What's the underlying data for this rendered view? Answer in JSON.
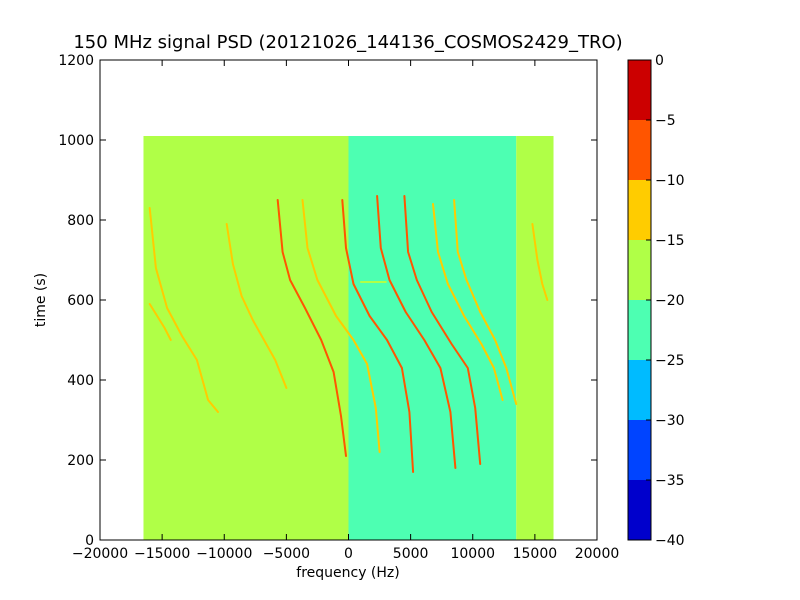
{
  "chart_data": {
    "type": "heatmap",
    "title": "150 MHz signal PSD (20121026_144136_COSMOS2429_TRO)",
    "xlabel": "frequency (Hz)",
    "ylabel": "time (s)",
    "xlim": [
      -20000,
      20000
    ],
    "ylim": [
      0,
      1200
    ],
    "x_ticks": [
      "−20000",
      "−15000",
      "−10000",
      "−5000",
      "0",
      "5000",
      "10000",
      "15000",
      "20000"
    ],
    "x_tick_values": [
      -20000,
      -15000,
      -10000,
      -5000,
      0,
      5000,
      10000,
      15000,
      20000
    ],
    "y_ticks": [
      "0",
      "200",
      "400",
      "600",
      "800",
      "1000",
      "1200"
    ],
    "y_tick_values": [
      0,
      200,
      400,
      600,
      800,
      1000,
      1200
    ],
    "data_extent": {
      "x": [
        -16500,
        16500
      ],
      "y": [
        0,
        1010
      ]
    },
    "background_regions": [
      {
        "x": [
          -16500,
          0
        ],
        "level": -18,
        "color": "#b0ff47"
      },
      {
        "x": [
          0,
          13500
        ],
        "level": -22,
        "color": "#4dffb2"
      },
      {
        "x": [
          13500,
          16500
        ],
        "level": -18,
        "color": "#b0ff47"
      }
    ],
    "traces": [
      {
        "points": [
          [
            -16000,
            590
          ],
          [
            -15400,
            560
          ],
          [
            -14800,
            530
          ],
          [
            -14300,
            500
          ]
        ],
        "level": -12
      },
      {
        "points": [
          [
            -16000,
            830
          ],
          [
            -15500,
            680
          ],
          [
            -14600,
            580
          ],
          [
            -13400,
            510
          ],
          [
            -12200,
            450
          ],
          [
            -11300,
            350
          ],
          [
            -10500,
            320
          ]
        ],
        "level": -13
      },
      {
        "points": [
          [
            -9800,
            790
          ],
          [
            -9300,
            690
          ],
          [
            -8600,
            610
          ],
          [
            -7700,
            550
          ],
          [
            -6800,
            500
          ],
          [
            -5900,
            450
          ],
          [
            -5000,
            380
          ]
        ],
        "level": -13
      },
      {
        "points": [
          [
            -5700,
            850
          ],
          [
            -5300,
            720
          ],
          [
            -4700,
            650
          ],
          [
            -3500,
            580
          ],
          [
            -2200,
            500
          ],
          [
            -1200,
            420
          ],
          [
            -600,
            310
          ],
          [
            -200,
            210
          ]
        ],
        "level": -5
      },
      {
        "points": [
          [
            -3700,
            850
          ],
          [
            -3300,
            730
          ],
          [
            -2500,
            650
          ],
          [
            -1000,
            560
          ],
          [
            400,
            500
          ],
          [
            1500,
            440
          ],
          [
            2200,
            330
          ],
          [
            2500,
            220
          ]
        ],
        "level": -10
      },
      {
        "points": [
          [
            -500,
            850
          ],
          [
            -200,
            730
          ],
          [
            400,
            640
          ],
          [
            1700,
            560
          ],
          [
            3100,
            500
          ],
          [
            4300,
            430
          ],
          [
            4900,
            320
          ],
          [
            5200,
            170
          ]
        ],
        "level": -5
      },
      {
        "points": [
          [
            2300,
            860
          ],
          [
            2600,
            730
          ],
          [
            3300,
            650
          ],
          [
            4600,
            570
          ],
          [
            6100,
            500
          ],
          [
            7400,
            430
          ],
          [
            8200,
            320
          ],
          [
            8600,
            180
          ]
        ],
        "level": -5
      },
      {
        "points": [
          [
            4500,
            860
          ],
          [
            4800,
            720
          ],
          [
            5500,
            650
          ],
          [
            6700,
            570
          ],
          [
            8300,
            490
          ],
          [
            9600,
            430
          ],
          [
            10200,
            330
          ],
          [
            10600,
            190
          ]
        ],
        "level": -8
      },
      {
        "points": [
          [
            6800,
            840
          ],
          [
            7200,
            720
          ],
          [
            8000,
            640
          ],
          [
            9300,
            560
          ],
          [
            10700,
            490
          ],
          [
            11700,
            430
          ],
          [
            12400,
            350
          ]
        ],
        "level": -12
      },
      {
        "points": [
          [
            8500,
            850
          ],
          [
            8800,
            720
          ],
          [
            9500,
            650
          ],
          [
            10600,
            570
          ],
          [
            11800,
            500
          ],
          [
            12700,
            430
          ],
          [
            13500,
            340
          ]
        ],
        "level": -14
      },
      {
        "points": [
          [
            14800,
            790
          ],
          [
            15200,
            700
          ],
          [
            15600,
            640
          ],
          [
            16000,
            600
          ]
        ],
        "level": -12
      },
      {
        "points": [
          [
            1000,
            645
          ],
          [
            3000,
            645
          ]
        ],
        "level": -18
      }
    ],
    "colorbar": {
      "min": -40,
      "max": 0,
      "ticks": [
        "0",
        "−5",
        "−10",
        "−15",
        "−20",
        "−25",
        "−30",
        "−35",
        "−40"
      ],
      "tick_values": [
        0,
        -5,
        -10,
        -15,
        -20,
        -25,
        -30,
        -35,
        -40
      ],
      "levels": [
        {
          "from": -40,
          "to": -35,
          "color": "#0000cc"
        },
        {
          "from": -35,
          "to": -30,
          "color": "#0044ff"
        },
        {
          "from": -30,
          "to": -25,
          "color": "#00bbff"
        },
        {
          "from": -25,
          "to": -20,
          "color": "#4dffb2"
        },
        {
          "from": -20,
          "to": -15,
          "color": "#b0ff47"
        },
        {
          "from": -15,
          "to": -10,
          "color": "#ffcc00"
        },
        {
          "from": -10,
          "to": -5,
          "color": "#ff5500"
        },
        {
          "from": -5,
          "to": 0,
          "color": "#cc0000"
        }
      ]
    }
  }
}
